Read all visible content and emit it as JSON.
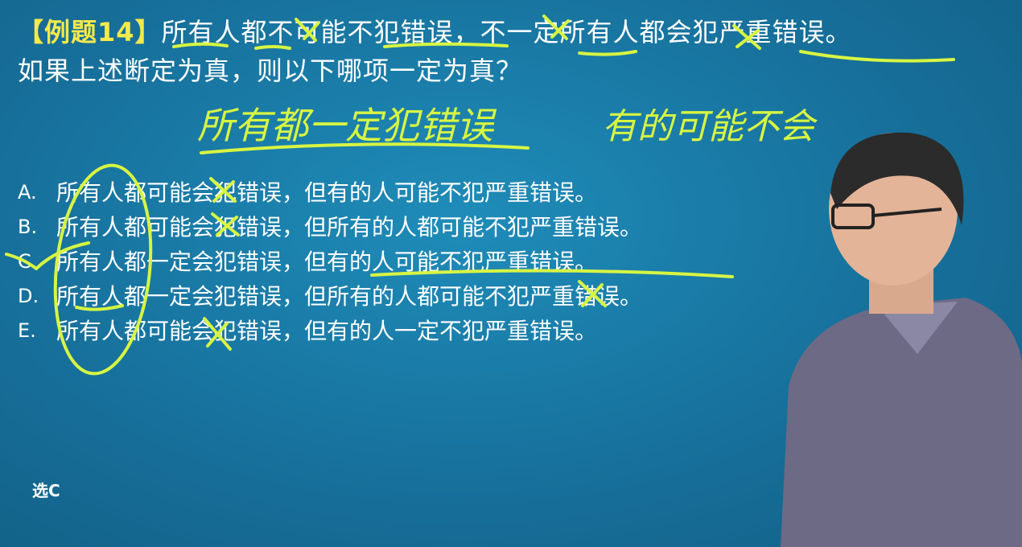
{
  "question": {
    "tag": "【例题14】",
    "statement": "所有人都不可能不犯错误，不一定所有人都会犯严重错误。",
    "prompt": "如果上述断定为真，则以下哪项一定为真？"
  },
  "handwritten_notes": {
    "note1": "所有都一定犯错误",
    "note2": "有的可能不会"
  },
  "options": [
    {
      "letter": "A.",
      "text": "所有人都可能会犯错误，但有的人可能不犯严重错误。"
    },
    {
      "letter": "B.",
      "text": "所有人都可能会犯错误，但所有的人都可能不犯严重错误。"
    },
    {
      "letter": "C.",
      "text": "所有人都一定会犯错误，但有的人可能不犯严重错误。"
    },
    {
      "letter": "D.",
      "text": "所有人都一定会犯错误，但所有的人都可能不犯严重错误。"
    },
    {
      "letter": "E.",
      "text": "所有人都可能会犯错误，但有的人一定不犯严重错误。"
    }
  ],
  "answer": "选C",
  "colors": {
    "background": "#17719c",
    "annotation": "#d7f542",
    "tag": "#f6e94a"
  }
}
